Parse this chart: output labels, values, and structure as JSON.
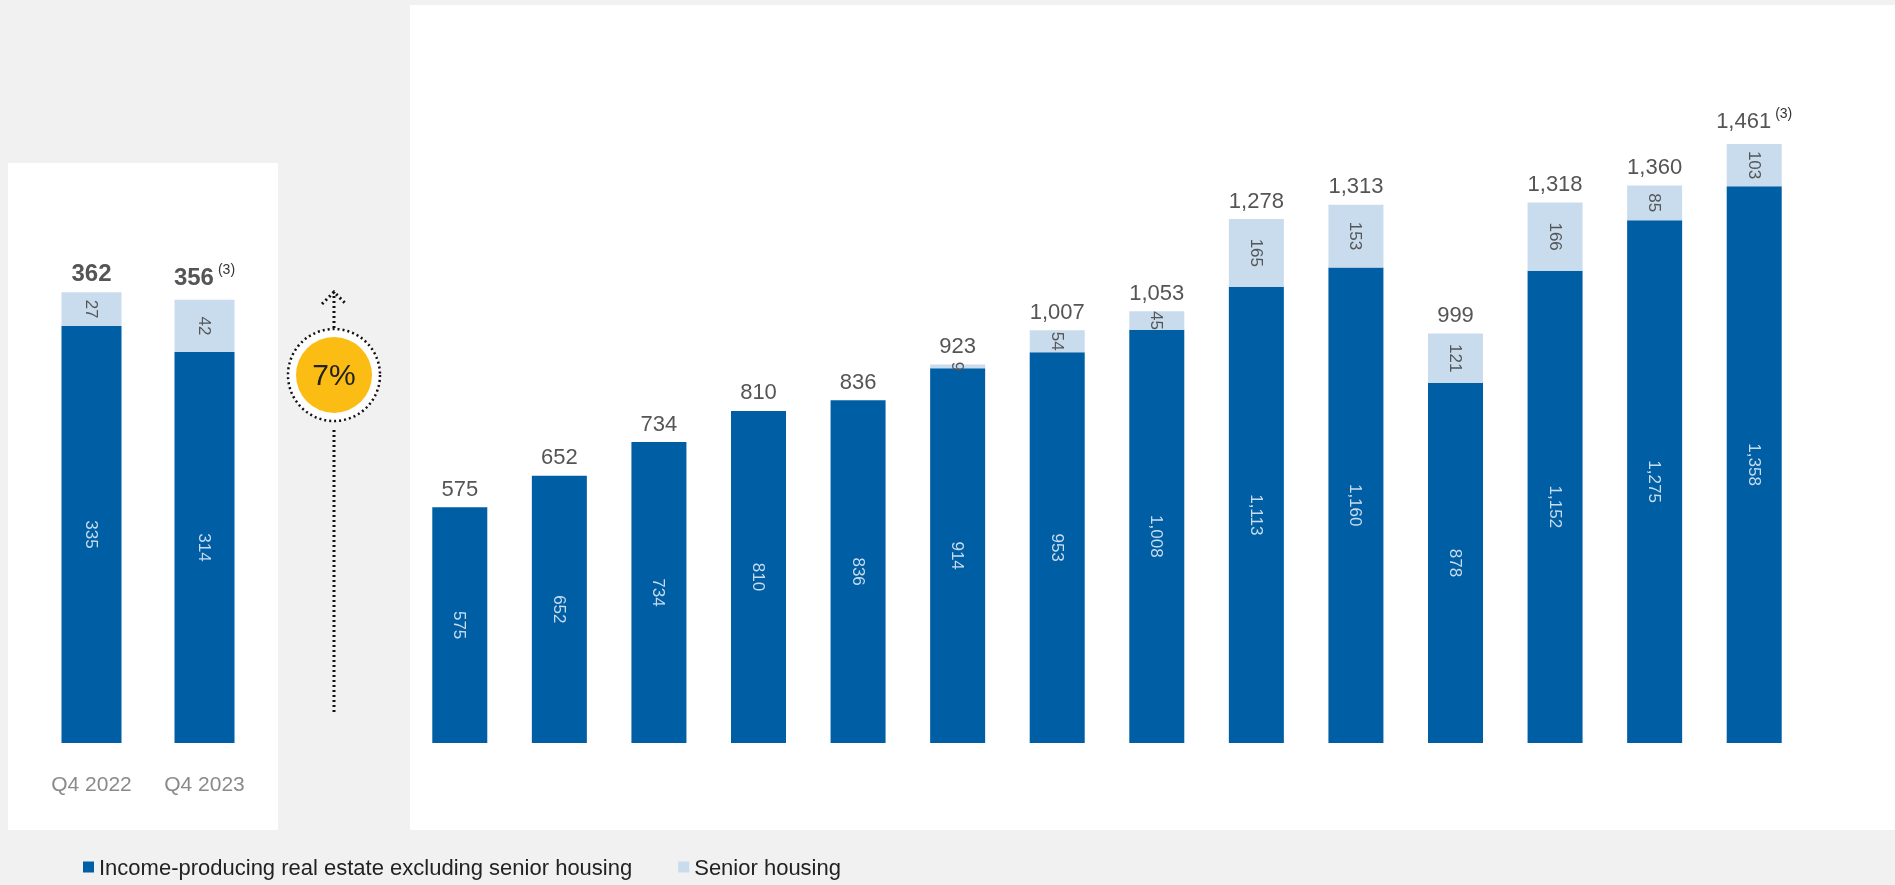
{
  "chart_data": [
    {
      "type": "bar",
      "stacked": true,
      "categories": [
        "Q4 2022",
        "Q4 2023"
      ],
      "tick_labels": "x",
      "data_labels": true,
      "legend": "bottom right",
      "annotations": [
        "7%"
      ],
      "totals": [
        "362",
        "356$^{(3)}$"
      ],
      "series": [
        {
          "name": "Income-producing real estate excluding senior housing",
          "color": "#005ea5",
          "values": [
            335,
            314
          ]
        },
        {
          "name": "Senior housing",
          "color": "#c9dced",
          "values": [
            27,
            42
          ]
        }
      ]
    },
    {
      "type": "bar",
      "stacked": true,
      "categories": [
        null,
        null,
        null,
        null,
        null,
        null,
        null,
        null,
        null,
        null,
        null,
        null,
        null,
        null
      ],
      "tick_labels": false,
      "totals": [
        "575",
        "652",
        "734",
        "810",
        "836",
        "923",
        "1,007",
        "1,053",
        "1,278",
        "1,313",
        "999",
        "1,318",
        "1,360",
        "1,461$^{(3)}$"
      ],
      "series": [
        {
          "color": "#005ea5",
          "values": [
            575,
            652,
            734,
            810,
            836,
            914,
            953,
            1008,
            1113,
            1160,
            878,
            1152,
            1275,
            1358
          ],
          "value_labels": [
            "575",
            "652",
            "734",
            "810",
            "836",
            "914",
            "953",
            "1,008",
            "1,113",
            "1,160",
            "878",
            "1,152",
            "1,275",
            "1,358"
          ]
        },
        {
          "color": "#c9dced",
          "values": [
            null,
            null,
            null,
            null,
            null,
            9,
            54,
            45,
            165,
            153,
            121,
            166,
            85,
            103
          ],
          "value_labels": [
            null,
            null,
            null,
            null,
            null,
            "9",
            "54",
            "45",
            "165",
            "153",
            "121",
            "166",
            "85",
            "103"
          ]
        }
      ]
    }
  ]
}
